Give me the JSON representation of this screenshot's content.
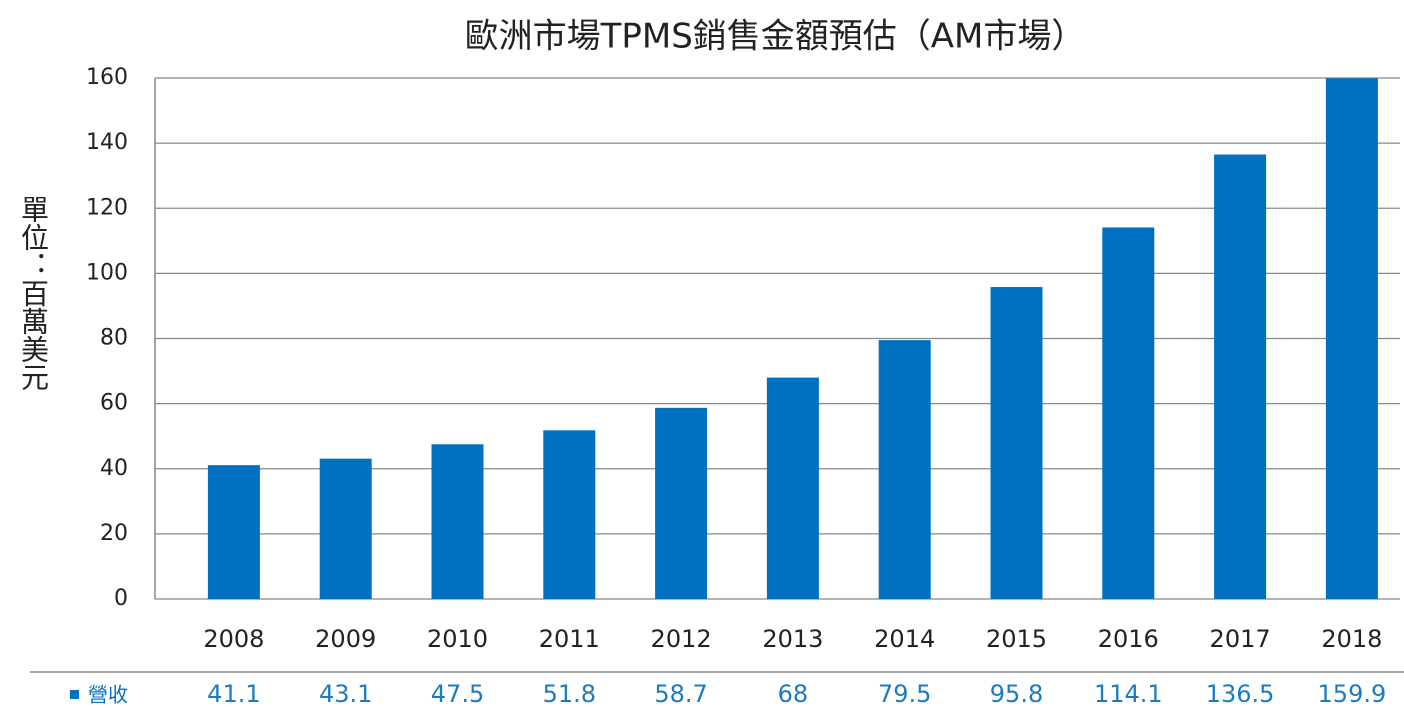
{
  "chart_data": {
    "type": "bar",
    "title": "歐洲市場TPMS銷售金額預估（AM市場）",
    "y_label": "單位：百萬美元",
    "categories": [
      "2008",
      "2009",
      "2010",
      "2011",
      "2012",
      "2013",
      "2014",
      "2015",
      "2016",
      "2017",
      "2018"
    ],
    "series": [
      {
        "name": "營收",
        "color": "#0070c0",
        "values": [
          41.1,
          43.1,
          47.5,
          51.8,
          58.7,
          68,
          79.5,
          95.8,
          114.1,
          136.5,
          159.9
        ]
      }
    ],
    "ylim": [
      0,
      160
    ],
    "yticks": [
      0,
      20,
      40,
      60,
      80,
      100,
      120,
      140,
      160
    ],
    "grid": true
  }
}
